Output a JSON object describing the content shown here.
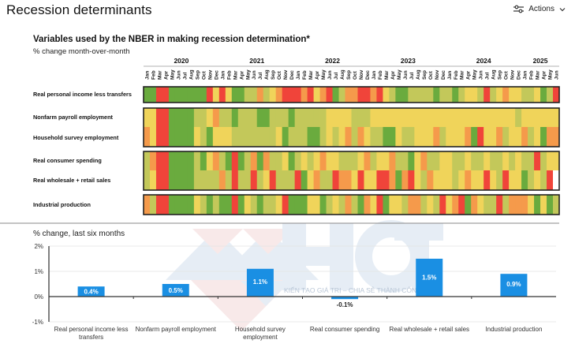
{
  "page": {
    "title": "Recession determinants",
    "actions_label": "Actions",
    "actions_icon": "sliders-icon",
    "actions_chevron": "chevron-down-icon"
  },
  "watermark": {
    "text": "HCT",
    "tagline": "KIẾN TẠO GIÁ TRỊ – CHIA SẺ THÀNH CÔNG"
  },
  "chart_data": [
    {
      "type": "heatmap",
      "title": "Variables used by the NBER in making recession determination*",
      "subtitle": "% change month-over-month",
      "years": [
        "2020",
        "2021",
        "2022",
        "2023",
        "2024",
        "2025"
      ],
      "months": [
        "Jan",
        "Feb",
        "Mar",
        "Apr",
        "May",
        "Jun",
        "Jul",
        "Aug",
        "Sep",
        "Oct",
        "Nov",
        "Dec"
      ],
      "start": "Jan 2020",
      "end": "Jun 2025",
      "n_months": 66,
      "scale": {
        "0": "#f0443a",
        "1": "#f59a4b",
        "2": "#f0d45a",
        "3": "#c3c85a",
        "4": "#6aab3e",
        "mid": "#a7c04e"
      },
      "groups": [
        {
          "rows": [
            0
          ]
        },
        {
          "rows": [
            1,
            2
          ]
        },
        {
          "rows": [
            3,
            4
          ]
        },
        {
          "rows": [
            5
          ]
        }
      ],
      "rows": [
        {
          "label": "Real personal income less transfers",
          "values": [
            4,
            4,
            0,
            0,
            4,
            4,
            4,
            4,
            4,
            4,
            0,
            2,
            0,
            2,
            4,
            4,
            3,
            3,
            1,
            3,
            2,
            1,
            0,
            0,
            0,
            1,
            0,
            2,
            1,
            0,
            4,
            3,
            1,
            1,
            0,
            0,
            1,
            0,
            2,
            3,
            4,
            4,
            3,
            3,
            3,
            3,
            4,
            3,
            3,
            4,
            3,
            2,
            2,
            3,
            0,
            3,
            2,
            1,
            2,
            2,
            3,
            3,
            2,
            4,
            3,
            0
          ]
        },
        {
          "label": "Nonfarm payroll employment",
          "values": [
            2,
            2,
            0,
            0,
            4,
            4,
            4,
            4,
            3,
            3,
            2,
            1,
            3,
            3,
            4,
            3,
            3,
            3,
            4,
            4,
            3,
            3,
            3,
            4,
            3,
            3,
            3,
            3,
            3,
            2,
            2,
            2,
            2,
            3,
            3,
            3,
            2,
            2,
            2,
            2,
            2,
            2,
            2,
            2,
            2,
            2,
            2,
            2,
            2,
            2,
            2,
            2,
            2,
            2,
            2,
            2,
            2,
            2,
            2,
            3,
            2,
            2,
            2,
            2,
            2,
            2
          ]
        },
        {
          "label": "Household survey employment",
          "values": [
            1,
            2,
            0,
            0,
            4,
            4,
            4,
            4,
            2,
            3,
            4,
            2,
            2,
            2,
            3,
            3,
            3,
            3,
            3,
            3,
            3,
            2,
            4,
            3,
            3,
            3,
            4,
            4,
            3,
            2,
            3,
            2,
            1,
            3,
            1,
            2,
            3,
            3,
            4,
            4,
            2,
            3,
            3,
            2,
            2,
            2,
            1,
            3,
            2,
            2,
            2,
            1,
            4,
            0,
            2,
            2,
            1,
            3,
            2,
            2,
            1,
            3,
            2,
            4,
            1,
            1
          ]
        },
        {
          "label": "Real consumer spending",
          "values": [
            3,
            1,
            0,
            0,
            4,
            4,
            4,
            4,
            3,
            4,
            2,
            1,
            3,
            4,
            0,
            4,
            3,
            1,
            4,
            1,
            3,
            3,
            2,
            4,
            3,
            2,
            3,
            2,
            1,
            2,
            2,
            3,
            3,
            3,
            2,
            1,
            3,
            2,
            2,
            1,
            3,
            3,
            4,
            2,
            1,
            3,
            3,
            2,
            2,
            3,
            3,
            2,
            3,
            3,
            2,
            3,
            3,
            2,
            3,
            2,
            3,
            3,
            0,
            3,
            2,
            2
          ]
        },
        {
          "label": "Real wholesale + retail sales",
          "values": [
            3,
            2,
            0,
            0,
            4,
            4,
            4,
            4,
            3,
            3,
            3,
            3,
            1,
            3,
            0,
            3,
            3,
            0,
            3,
            2,
            0,
            3,
            3,
            3,
            0,
            4,
            2,
            1,
            3,
            3,
            0,
            1,
            1,
            2,
            0,
            2,
            2,
            0,
            0,
            1,
            4,
            1,
            0,
            2,
            3,
            1,
            2,
            2,
            2,
            3,
            2,
            1,
            2,
            2,
            0,
            2,
            3,
            0,
            2,
            2,
            4,
            3,
            2,
            3,
            0,
            "blank"
          ]
        },
        {
          "label": "Industrial production",
          "values": [
            1,
            3,
            0,
            0,
            4,
            4,
            4,
            4,
            2,
            3,
            4,
            3,
            4,
            4,
            0,
            4,
            2,
            3,
            4,
            3,
            3,
            2,
            0,
            4,
            4,
            4,
            2,
            2,
            4,
            3,
            2,
            3,
            1,
            3,
            4,
            1,
            2,
            0,
            4,
            2,
            2,
            3,
            1,
            1,
            3,
            2,
            3,
            0,
            2,
            1,
            0,
            4,
            1,
            2,
            3,
            3,
            0,
            3,
            1,
            1,
            1,
            2,
            4,
            2,
            4,
            3
          ]
        }
      ]
    },
    {
      "type": "bar",
      "title": "% change, last six months",
      "categories": [
        "Real personal income less transfers",
        "Nonfarm payroll employment",
        "Household survey employment",
        "Real consumer spending",
        "Real wholesale + retail sales",
        "Industrial production"
      ],
      "category_lines": [
        [
          "Real personal income less",
          "transfers"
        ],
        [
          "Nonfarm payroll employment"
        ],
        [
          "Household survey",
          "employment"
        ],
        [
          "Real consumer spending"
        ],
        [
          "Real wholesale + retail sales"
        ],
        [
          "Industrial production"
        ]
      ],
      "values": [
        0.4,
        0.5,
        1.1,
        -0.1,
        1.5,
        0.9
      ],
      "data_labels": [
        "0.4%",
        "0.5%",
        "1.1%",
        "-0.1%",
        "1.5%",
        "0.9%"
      ],
      "ylim": [
        -1,
        2
      ],
      "yticks": [
        2,
        1,
        0,
        -1
      ],
      "ytick_labels": [
        "2%",
        "1%",
        "0%",
        "-1%"
      ],
      "bar_color": "#1a8fe3",
      "grid": true,
      "xlabel": "",
      "ylabel": ""
    }
  ]
}
